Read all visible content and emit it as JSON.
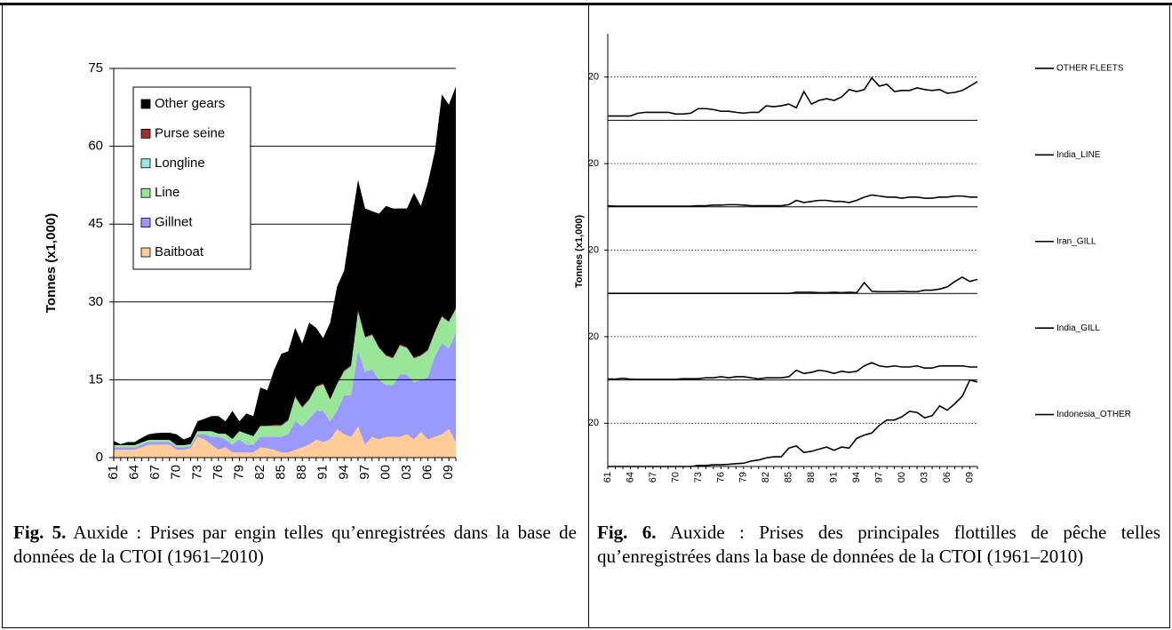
{
  "chart_data": [
    {
      "type": "area",
      "y_label": "Tonnes (x1,000)",
      "categories": [
        "61",
        null,
        null,
        "64",
        null,
        null,
        "67",
        null,
        null,
        "70",
        null,
        null,
        "73",
        null,
        null,
        "76",
        null,
        null,
        "79",
        null,
        null,
        "82",
        null,
        null,
        "85",
        null,
        null,
        "88",
        null,
        null,
        "91",
        null,
        null,
        "94",
        null,
        null,
        "97",
        null,
        null,
        "00",
        null,
        null,
        "03",
        null,
        null,
        "06",
        null,
        null,
        "09",
        null
      ],
      "series": [
        {
          "name": "Baitboat",
          "color": "#ffcc99",
          "values": [
            1.5,
            1.5,
            1.5,
            1.5,
            2,
            2.5,
            2.5,
            2.5,
            2.5,
            1.5,
            1.5,
            1.8,
            4,
            3.5,
            2.5,
            1.5,
            2,
            1,
            1,
            1,
            1,
            2,
            1.8,
            1.5,
            1,
            1,
            1.5,
            2,
            2.5,
            3.5,
            3,
            3.5,
            5.5,
            4.5,
            4,
            6,
            2.5,
            4,
            3.5,
            4,
            4,
            4,
            4.5,
            3.5,
            5,
            3.5,
            4,
            4.5,
            5.5,
            3
          ]
        },
        {
          "name": "Gillnet",
          "color": "#9999ff",
          "values": [
            0.5,
            0.5,
            0.5,
            0.5,
            0.5,
            0.5,
            0.5,
            0.5,
            0.5,
            0.5,
            0.5,
            0.4,
            0.5,
            1,
            1.5,
            2.5,
            1.5,
            1.5,
            2.5,
            1.5,
            1.5,
            2,
            2.2,
            2.5,
            3,
            3.5,
            5.5,
            4,
            5,
            5.5,
            6,
            3.5,
            3.5,
            7.5,
            8,
            14.5,
            14,
            13,
            11.5,
            10,
            10,
            12,
            11.5,
            11,
            10,
            12,
            15.5,
            17.5,
            15.5,
            21
          ]
        },
        {
          "name": "Line",
          "color": "#99e699",
          "values": [
            0.3,
            0.3,
            0.3,
            0.3,
            0.3,
            0.3,
            0.3,
            0.3,
            0.3,
            0.3,
            0.3,
            0.3,
            0.5,
            0.5,
            1,
            0.5,
            1,
            1,
            1.5,
            2,
            1.5,
            2,
            2,
            2,
            2,
            2.5,
            4.5,
            3.5,
            3.5,
            4.5,
            5,
            4,
            5,
            4.5,
            5.5,
            7.5,
            6.5,
            6.5,
            6,
            5.5,
            5,
            5.5,
            5,
            4.5,
            4.5,
            5,
            4.5,
            5,
            5,
            4.5
          ]
        },
        {
          "name": "Longline",
          "color": "#99e6e6",
          "values": [
            0.1,
            0.1,
            0.1,
            0.1,
            0.1,
            0.1,
            0.1,
            0.1,
            0.1,
            0.1,
            0.1,
            0.1,
            0.1,
            0.1,
            0.1,
            0.1,
            0.1,
            0.1,
            0.1,
            0.1,
            0.1,
            0.1,
            0.1,
            0.1,
            0.1,
            0.1,
            0.1,
            0.1,
            0.1,
            0.1,
            0.1,
            0.1,
            0.1,
            0.1,
            0.1,
            0.1,
            0.1,
            0.1,
            0.1,
            0.1,
            0.1,
            0.1,
            0.1,
            0.1,
            0.1,
            0.1,
            0.1,
            0.1,
            0.1,
            0.1
          ]
        },
        {
          "name": "Purse seine",
          "color": "#993333",
          "values": [
            0,
            0,
            0,
            0,
            0,
            0,
            0,
            0,
            0,
            0,
            0,
            0,
            0,
            0,
            0,
            0,
            0,
            0,
            0,
            0,
            0,
            0,
            0,
            0.2,
            0.2,
            0.2,
            0.2,
            0.2,
            0.2,
            0.2,
            0.2,
            0.2,
            0.2,
            0.2,
            0.2,
            0.2,
            0.2,
            0.2,
            0.2,
            0.2,
            0.2,
            0.2,
            0.2,
            0.2,
            0.2,
            0.2,
            0.2,
            0.2,
            0.2,
            0.2
          ]
        },
        {
          "name": "Other gears",
          "color": "#000000",
          "values": [
            0.8,
            0.2,
            0.6,
            0.6,
            0.9,
            1.1,
            1.3,
            1.4,
            1.4,
            2.1,
            1.1,
            1.4,
            1.9,
            2.4,
            2.9,
            3.4,
            2.4,
            5.4,
            1.9,
            3.9,
            3.9,
            7.4,
            6.9,
            10.7,
            13.7,
            13.2,
            13.2,
            12.2,
            14.7,
            11.2,
            8.7,
            14.7,
            18.7,
            19.2,
            27.2,
            25.2,
            24.7,
            23.7,
            25.7,
            28.7,
            28.7,
            26.2,
            26.7,
            31.7,
            28.7,
            32.2,
            34.7,
            42.7,
            41.7,
            42.7
          ]
        }
      ],
      "ylim": [
        0,
        75
      ],
      "yticks": [
        0,
        15,
        30,
        45,
        60,
        75
      ],
      "grid": true,
      "legend": "upper-left"
    },
    {
      "type": "line-panels",
      "y_label": "Tonnes (x1,000)",
      "categories": [
        "61",
        null,
        null,
        "64",
        null,
        null,
        "67",
        null,
        null,
        "70",
        null,
        null,
        "73",
        null,
        null,
        "76",
        null,
        null,
        "79",
        null,
        null,
        "82",
        null,
        null,
        "85",
        null,
        null,
        "88",
        null,
        null,
        "91",
        null,
        null,
        "94",
        null,
        null,
        "97",
        null,
        null,
        "00",
        null,
        null,
        "03",
        null,
        null,
        "06",
        null,
        null,
        "09",
        null
      ],
      "series": [
        {
          "name": "OTHER FLEETS",
          "color": "#000000",
          "values": [
            2,
            2,
            2,
            2,
            3.3,
            3.7,
            3.7,
            3.7,
            3.7,
            2.9,
            2.9,
            3.3,
            5.4,
            5.4,
            5,
            4.2,
            4.2,
            3.7,
            3.3,
            3.7,
            3.7,
            6.7,
            6.3,
            6.7,
            7.5,
            5.8,
            13.3,
            7.5,
            9.2,
            10,
            9.2,
            10.8,
            14.2,
            13.3,
            14.2,
            19.6,
            15.8,
            16.7,
            13.3,
            13.8,
            13.8,
            15,
            14.2,
            13.8,
            14.2,
            12.5,
            12.9,
            13.8,
            15.8,
            17.9
          ]
        },
        {
          "name": "India_LINE",
          "color": "#000000",
          "values": [
            0.5,
            0.3,
            0.3,
            0.3,
            0.3,
            0.3,
            0.3,
            0.3,
            0.3,
            0.3,
            0.3,
            0.3,
            0.5,
            0.5,
            0.8,
            0.8,
            1,
            1,
            0.8,
            0.5,
            0.5,
            0.5,
            0.5,
            0.5,
            1,
            3,
            2,
            2.5,
            3,
            3,
            2.5,
            2.5,
            2,
            3,
            4.5,
            5.5,
            5,
            4.5,
            4.5,
            4,
            4.5,
            4.5,
            4,
            4,
            4.5,
            4.5,
            5,
            5,
            4.5,
            4.5
          ]
        },
        {
          "name": "Iran_GILL",
          "color": "#000000",
          "values": [
            0,
            0,
            0,
            0,
            0,
            0,
            0,
            0,
            0,
            0,
            0,
            0,
            0,
            0,
            0,
            0,
            0,
            0,
            0,
            0,
            0,
            0,
            0,
            0,
            0,
            0.5,
            0.5,
            0.5,
            0.3,
            0.3,
            0.5,
            0.3,
            0.5,
            0.3,
            5,
            1,
            0.8,
            0.8,
            0.8,
            1,
            0.8,
            0.8,
            1.5,
            1.5,
            2,
            3,
            5.5,
            7.5,
            5.5,
            6.5
          ]
        },
        {
          "name": "India_GILL",
          "color": "#000000",
          "values": [
            0.5,
            0.4,
            0.8,
            0.4,
            0.3,
            0.3,
            0.3,
            0.3,
            0.3,
            0.3,
            0.6,
            0.6,
            0.6,
            1,
            1,
            1.5,
            1,
            1.5,
            1.5,
            1,
            0.5,
            1,
            1,
            1,
            1.5,
            4.5,
            3,
            3.5,
            4.5,
            4,
            3,
            4,
            3.5,
            4,
            6.5,
            8,
            6.5,
            6,
            6.5,
            6,
            6,
            6.5,
            5.5,
            5.5,
            6.5,
            6.5,
            6.5,
            6.5,
            6,
            6
          ]
        },
        {
          "name": "Indonesia_OTHER",
          "color": "#000000",
          "values": [
            0,
            0,
            0,
            0,
            0,
            0,
            0,
            0,
            0,
            0,
            0,
            0,
            0.5,
            0.5,
            0.8,
            0.8,
            1,
            1.3,
            1.5,
            2.5,
            3,
            4,
            4.5,
            4.5,
            8.5,
            9.5,
            6.5,
            7,
            8,
            9,
            7.5,
            9,
            8.5,
            13,
            14.5,
            15.5,
            19,
            21.5,
            21.5,
            23,
            25.5,
            25,
            22.5,
            23.5,
            28,
            26,
            29,
            32.5,
            40,
            39
          ]
        }
      ],
      "ylim": [
        0,
        40
      ],
      "yticks": [
        20
      ],
      "grid": true,
      "legend": "right"
    }
  ],
  "captions": [
    {
      "label": "Fig. 5.",
      "text": "Auxide : Prises par engin telles qu’enregistrées dans la base de données de la CTOI (1961–2010)"
    },
    {
      "label": "Fig. 6.",
      "text": "Auxide : Prises des principales flottilles de pêche telles qu’enregistrées dans la base de données de la CTOI (1961–2010)"
    }
  ]
}
